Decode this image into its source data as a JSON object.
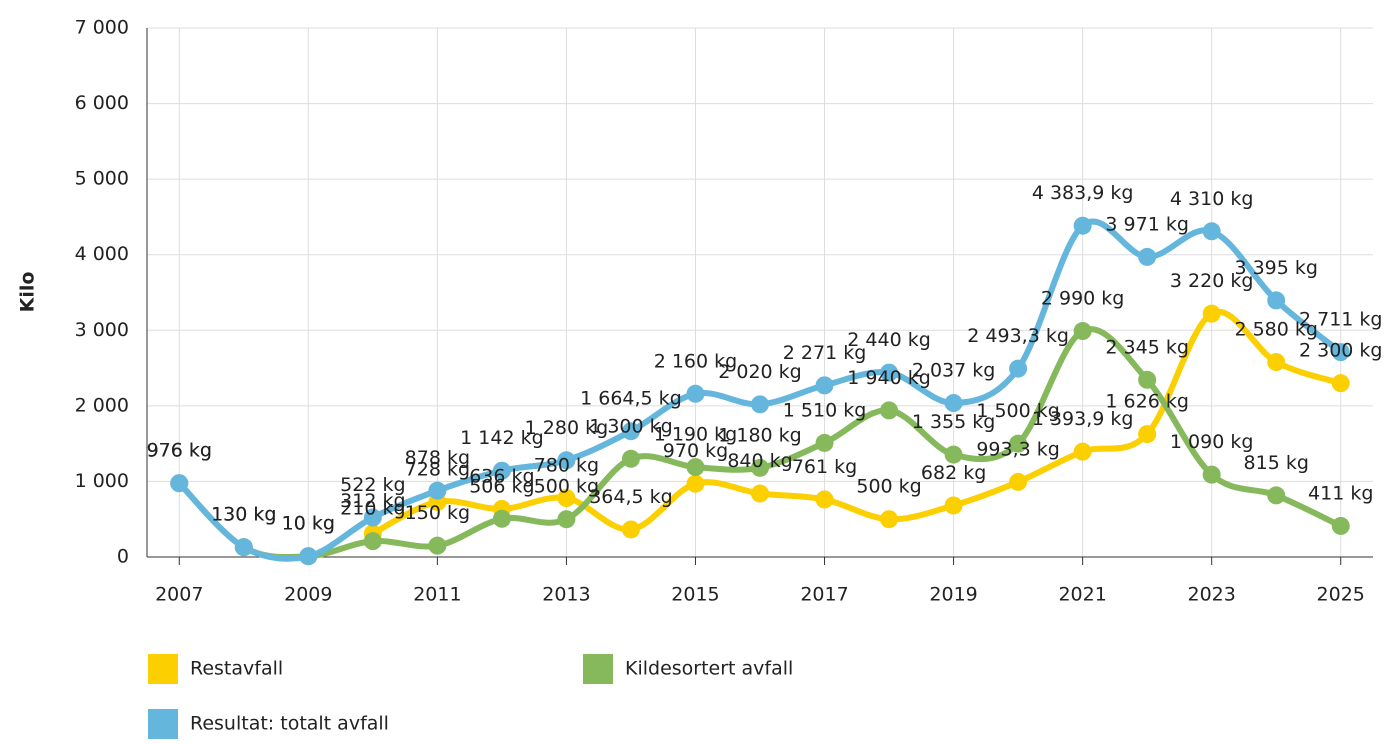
{
  "chart_data": {
    "type": "line",
    "y_label": "Kilo",
    "x": [
      2007,
      2008,
      2009,
      2010,
      2011,
      2012,
      2013,
      2014,
      2015,
      2016,
      2017,
      2018,
      2019,
      2020,
      2021,
      2022,
      2023,
      2024,
      2025
    ],
    "xlim": [
      2006.5,
      2025.5
    ],
    "xticks": [
      2007,
      2009,
      2011,
      2013,
      2015,
      2017,
      2019,
      2021,
      2023,
      2025
    ],
    "ylim": [
      0,
      7000
    ],
    "yticks": [
      0,
      {
        "value": 1000,
        "label": "1 000"
      },
      {
        "value": 2000,
        "label": "2 000"
      },
      {
        "value": 3000,
        "label": "3 000"
      },
      {
        "value": 4000,
        "label": "4 000"
      },
      {
        "value": 5000,
        "label": "5 000"
      },
      {
        "value": 6000,
        "label": "6 000"
      },
      {
        "value": 7000,
        "label": "7 000"
      }
    ],
    "grid": true,
    "legend": "bottom",
    "series": [
      {
        "name": "Restavfall",
        "color": "#fccf00",
        "values": [
          null,
          null,
          null,
          312,
          728,
          636,
          780,
          364.5,
          970,
          840,
          761,
          500,
          682,
          993.3,
          1393.9,
          1626,
          3220,
          2580,
          2300
        ],
        "value_labels": [
          null,
          null,
          null,
          "312 kg",
          "728 kg",
          "636 kg",
          "780 kg",
          "364,5 kg",
          "970 kg",
          "840 kg",
          "761 kg",
          "500 kg",
          "682 kg",
          "993,3 kg",
          "1 393,9 kg",
          "1 626 kg",
          "3 220 kg",
          "2 580 kg",
          "2 300 kg"
        ]
      },
      {
        "name": "Kildesortert avfall",
        "color": "#86b85c",
        "values": [
          976,
          130,
          10,
          210,
          150,
          506,
          500,
          1300,
          1190,
          1180,
          1510,
          1940,
          1355,
          1500,
          2990,
          2345,
          1090,
          815,
          411
        ],
        "value_labels": [
          "976 kg",
          "130 kg",
          "10 kg",
          "210 kg",
          "150 kg",
          "506 kg",
          "500 kg",
          "1 300 kg",
          "1 190 kg",
          "1 180 kg",
          "1 510 kg",
          "1 940 kg",
          "1 355 kg",
          "1 500 kg",
          "2 990 kg",
          "2 345 kg",
          "1 090 kg",
          "815 kg",
          "411 kg"
        ]
      },
      {
        "name": "Resultat: totalt avfall",
        "color": "#64b6dd",
        "values": [
          976,
          130,
          10,
          522,
          878,
          1142,
          1280,
          1664.5,
          2160,
          2020,
          2271,
          2440,
          2037,
          2493.3,
          4383.9,
          3971,
          4310,
          3395,
          2711
        ],
        "value_labels": [
          "976 kg",
          "130 kg",
          "10 kg",
          "522 kg",
          "878 kg",
          "1 142 kg",
          "1 280 kg",
          "1 664,5 kg",
          "2 160 kg",
          "2 020 kg",
          "2 271 kg",
          "2 440 kg",
          "2 037 kg",
          "2 493,3 kg",
          "4 383,9 kg",
          "3 971 kg",
          "4 310 kg",
          "3 395 kg",
          "2 711 kg"
        ]
      }
    ]
  }
}
